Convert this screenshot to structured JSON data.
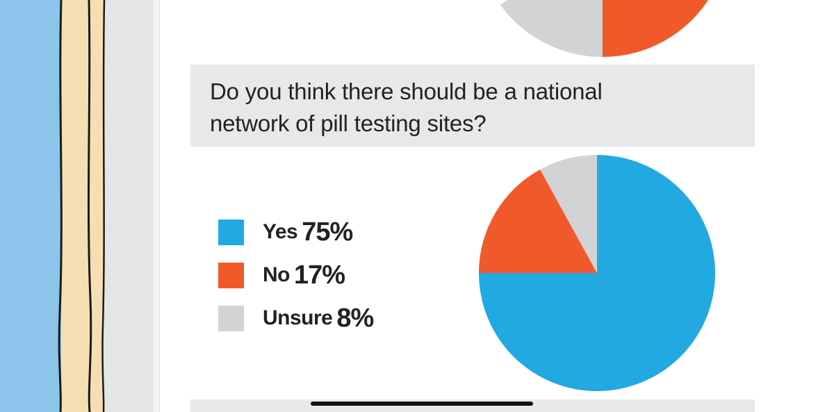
{
  "colors": {
    "yes": "#22a9e1",
    "no": "#f05a2b",
    "unsure": "#d1d3d4",
    "panel_bg": "#e7e8ea"
  },
  "question": {
    "line1": "Do you think there should be a national",
    "line2": "network of pill testing sites?"
  },
  "chart_data": [
    {
      "type": "pie",
      "partially_visible": true,
      "slices": [
        {
          "color": "#d1d3d4"
        },
        {
          "color": "#f05a2b"
        }
      ]
    },
    {
      "type": "pie",
      "title": "",
      "slices": [
        {
          "label": "Yes",
          "value": 75,
          "display": "75%",
          "color": "#22a9e1"
        },
        {
          "label": "No",
          "value": 17,
          "display": "17%",
          "color": "#f05a2b"
        },
        {
          "label": "Unsure",
          "value": 8,
          "display": "8%",
          "color": "#d1d3d4"
        }
      ],
      "legend_position": "left"
    }
  ]
}
